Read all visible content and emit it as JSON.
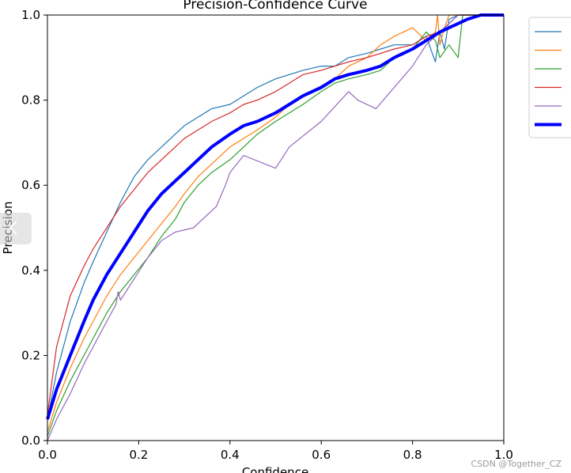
{
  "chart_data": {
    "type": "line",
    "title": "Precision-Confidence Curve",
    "xlabel": "Confidence",
    "ylabel": "Precision",
    "xlim": [
      0.0,
      1.0
    ],
    "ylim": [
      0.0,
      1.0
    ],
    "xticks": [
      "0.0",
      "0.2",
      "0.4",
      "0.6",
      "0.8",
      "1.0"
    ],
    "yticks": [
      "0.0",
      "0.2",
      "0.4",
      "0.6",
      "0.8",
      "1.0"
    ],
    "grid": false,
    "legend": "upper-right outside",
    "series": [
      {
        "color": "#1f77b4",
        "width": 1.2,
        "x": [
          0.0,
          0.02,
          0.05,
          0.08,
          0.1,
          0.13,
          0.16,
          0.19,
          0.22,
          0.25,
          0.28,
          0.3,
          0.33,
          0.36,
          0.4,
          0.43,
          0.46,
          0.5,
          0.53,
          0.56,
          0.6,
          0.63,
          0.66,
          0.7,
          0.73,
          0.76,
          0.8,
          0.83,
          0.85,
          0.86,
          0.87,
          0.88,
          0.9,
          0.92,
          0.95,
          1.0
        ],
        "y": [
          0.05,
          0.16,
          0.28,
          0.37,
          0.42,
          0.49,
          0.56,
          0.62,
          0.66,
          0.69,
          0.72,
          0.74,
          0.76,
          0.78,
          0.79,
          0.81,
          0.83,
          0.85,
          0.86,
          0.87,
          0.88,
          0.88,
          0.9,
          0.91,
          0.92,
          0.93,
          0.93,
          0.95,
          0.89,
          0.96,
          0.92,
          0.99,
          1.0,
          1.0,
          1.0,
          1.0
        ]
      },
      {
        "color": "#ff7f0e",
        "width": 1.2,
        "x": [
          0.0,
          0.02,
          0.05,
          0.08,
          0.1,
          0.13,
          0.16,
          0.19,
          0.22,
          0.25,
          0.28,
          0.3,
          0.33,
          0.36,
          0.4,
          0.43,
          0.46,
          0.5,
          0.53,
          0.56,
          0.6,
          0.63,
          0.66,
          0.7,
          0.73,
          0.76,
          0.8,
          0.83,
          0.85,
          0.855,
          0.86,
          0.87,
          0.88,
          0.9,
          0.92,
          0.95,
          1.0
        ],
        "y": [
          0.02,
          0.09,
          0.17,
          0.24,
          0.28,
          0.34,
          0.39,
          0.43,
          0.47,
          0.51,
          0.55,
          0.58,
          0.62,
          0.65,
          0.69,
          0.71,
          0.73,
          0.76,
          0.79,
          0.81,
          0.83,
          0.85,
          0.88,
          0.9,
          0.93,
          0.95,
          0.97,
          0.94,
          0.96,
          1.0,
          0.93,
          0.97,
          1.0,
          1.0,
          1.0,
          1.0,
          1.0
        ]
      },
      {
        "color": "#2ca02c",
        "width": 1.2,
        "x": [
          0.0,
          0.02,
          0.05,
          0.08,
          0.1,
          0.13,
          0.16,
          0.19,
          0.22,
          0.25,
          0.28,
          0.3,
          0.33,
          0.36,
          0.4,
          0.43,
          0.46,
          0.5,
          0.53,
          0.56,
          0.6,
          0.63,
          0.66,
          0.7,
          0.73,
          0.76,
          0.8,
          0.83,
          0.85,
          0.86,
          0.88,
          0.9,
          0.91,
          0.92,
          0.95,
          1.0
        ],
        "y": [
          0.01,
          0.07,
          0.14,
          0.2,
          0.24,
          0.3,
          0.35,
          0.39,
          0.43,
          0.48,
          0.52,
          0.56,
          0.6,
          0.63,
          0.66,
          0.69,
          0.72,
          0.75,
          0.77,
          0.79,
          0.82,
          0.84,
          0.85,
          0.86,
          0.87,
          0.9,
          0.92,
          0.96,
          0.94,
          0.9,
          0.93,
          0.9,
          1.0,
          1.0,
          1.0,
          1.0
        ]
      },
      {
        "color": "#d62728",
        "width": 1.2,
        "x": [
          0.0,
          0.02,
          0.05,
          0.08,
          0.1,
          0.13,
          0.16,
          0.19,
          0.22,
          0.25,
          0.28,
          0.3,
          0.33,
          0.36,
          0.4,
          0.43,
          0.46,
          0.5,
          0.53,
          0.56,
          0.6,
          0.63,
          0.66,
          0.7,
          0.73,
          0.76,
          0.8,
          0.83,
          0.86,
          0.88,
          0.9,
          0.92,
          0.95,
          1.0
        ],
        "y": [
          0.06,
          0.22,
          0.34,
          0.41,
          0.45,
          0.5,
          0.55,
          0.59,
          0.63,
          0.66,
          0.69,
          0.71,
          0.73,
          0.75,
          0.77,
          0.79,
          0.8,
          0.82,
          0.84,
          0.86,
          0.87,
          0.88,
          0.89,
          0.9,
          0.91,
          0.92,
          0.93,
          0.95,
          0.96,
          0.98,
          1.0,
          1.0,
          1.0,
          1.0
        ]
      },
      {
        "color": "#9467bd",
        "width": 1.2,
        "x": [
          0.0,
          0.02,
          0.05,
          0.08,
          0.1,
          0.13,
          0.15,
          0.155,
          0.16,
          0.19,
          0.22,
          0.25,
          0.28,
          0.32,
          0.37,
          0.39,
          0.4,
          0.43,
          0.5,
          0.53,
          0.6,
          0.66,
          0.68,
          0.72,
          0.76,
          0.8,
          0.83,
          0.85,
          0.87,
          0.9,
          0.92,
          0.95,
          1.0
        ],
        "y": [
          0.0,
          0.05,
          0.11,
          0.18,
          0.22,
          0.28,
          0.32,
          0.35,
          0.33,
          0.38,
          0.43,
          0.47,
          0.49,
          0.5,
          0.55,
          0.6,
          0.63,
          0.67,
          0.64,
          0.69,
          0.75,
          0.82,
          0.8,
          0.78,
          0.83,
          0.88,
          0.93,
          0.95,
          0.97,
          1.0,
          1.0,
          1.0,
          1.0
        ]
      },
      {
        "color": "#0000ff",
        "width": 4.0,
        "x": [
          0.0,
          0.02,
          0.05,
          0.08,
          0.1,
          0.13,
          0.16,
          0.19,
          0.22,
          0.25,
          0.28,
          0.3,
          0.33,
          0.36,
          0.4,
          0.43,
          0.46,
          0.5,
          0.53,
          0.56,
          0.6,
          0.63,
          0.66,
          0.7,
          0.73,
          0.76,
          0.8,
          0.83,
          0.86,
          0.88,
          0.9,
          0.92,
          0.95,
          1.0
        ],
        "y": [
          0.05,
          0.12,
          0.2,
          0.28,
          0.33,
          0.39,
          0.44,
          0.49,
          0.54,
          0.58,
          0.61,
          0.63,
          0.66,
          0.69,
          0.72,
          0.74,
          0.75,
          0.77,
          0.79,
          0.81,
          0.83,
          0.85,
          0.86,
          0.87,
          0.88,
          0.9,
          0.92,
          0.94,
          0.96,
          0.97,
          0.98,
          0.99,
          1.0,
          1.0
        ]
      }
    ]
  },
  "watermark": "CSDN @Together_CZ"
}
